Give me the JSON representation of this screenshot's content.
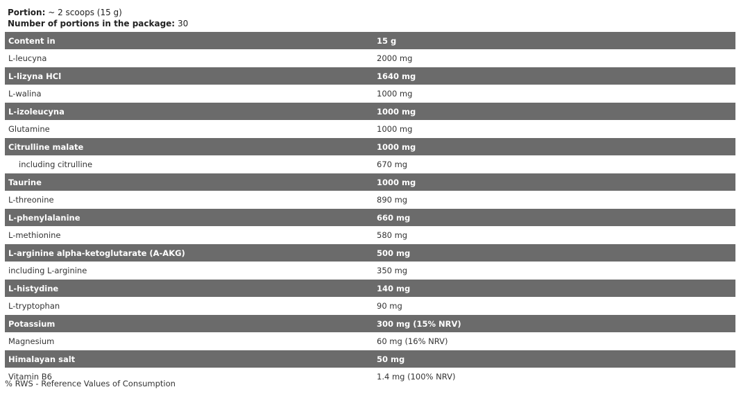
{
  "portion": {
    "label": "Portion:",
    "value": "~ 2 scoops (15 g)"
  },
  "portions_count": {
    "label": "Number of portions in the package:",
    "value": "30"
  },
  "table": {
    "header": [
      "Content in",
      "15 g"
    ],
    "rows": [
      {
        "name": "L-leucyna",
        "value": "2000 mg"
      },
      {
        "name": "L-lizyna HCl",
        "value": "1640 mg"
      },
      {
        "name": "L-walina",
        "value": "1000 mg"
      },
      {
        "name": "L-izoleucyna",
        "value": "1000 mg"
      },
      {
        "name": "Glutamine",
        "value": "1000 mg"
      },
      {
        "name": "Citrulline malate",
        "value": "1000 mg"
      },
      {
        "name": "including citrulline",
        "value": "670 mg"
      },
      {
        "name": "Taurine",
        "value": "1000 mg"
      },
      {
        "name": "L-threonine",
        "value": "890 mg"
      },
      {
        "name": "L-phenylalanine",
        "value": "660 mg"
      },
      {
        "name": "L-methionine",
        "value": "580 mg"
      },
      {
        "name": "L-arginine alpha-ketoglutarate (A-AKG)",
        "value": "500 mg"
      },
      {
        "name": "including L-arginine",
        "value": "350 mg"
      },
      {
        "name": "L-histydine",
        "value": "140 mg"
      },
      {
        "name": "L-tryptophan",
        "value": "90 mg"
      },
      {
        "name": "Potassium",
        "value": "300 mg (15% NRV)"
      },
      {
        "name": "Magnesium",
        "value": "60 mg (16% NRV)"
      },
      {
        "name": "Himalayan salt",
        "value": "50 mg"
      },
      {
        "name": "Vitamin B6",
        "value": "1.4 mg (100% NRV)"
      }
    ]
  },
  "footnote": "% RWS - Reference Values of Consumption",
  "colors": {
    "dark_row": "#6b6b6b"
  }
}
